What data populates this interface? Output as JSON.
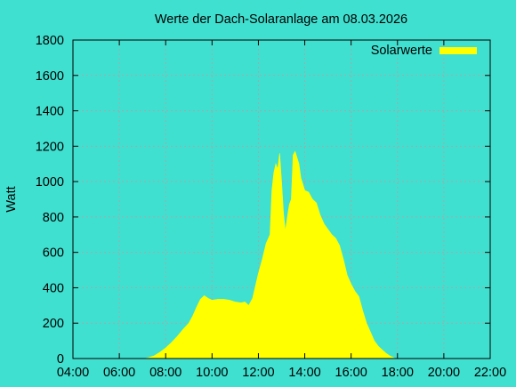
{
  "chart_data": {
    "type": "area",
    "title": "Werte der Dach-Solaranlage am 08.03.2026",
    "xlabel": "",
    "ylabel": "Watt",
    "xlim": [
      "04:00",
      "22:00"
    ],
    "ylim": [
      0,
      1800
    ],
    "xticks": [
      "04:00",
      "06:00",
      "08:00",
      "10:00",
      "12:00",
      "14:00",
      "16:00",
      "18:00",
      "20:00",
      "22:00"
    ],
    "yticks": [
      "0",
      "200",
      "400",
      "600",
      "800",
      "1000",
      "1200",
      "1400",
      "1600",
      "1800"
    ],
    "grid": true,
    "legend_position": "top-right",
    "colors": {
      "background": "#40e0d0",
      "series": "#ffff00",
      "grid": "#a8a8a8",
      "axis": "#000000"
    },
    "series": [
      {
        "name": "Solarwerte",
        "color": "#ffff00",
        "points": [
          [
            "07:05",
            0
          ],
          [
            "07:15",
            5
          ],
          [
            "07:30",
            15
          ],
          [
            "07:45",
            35
          ],
          [
            "08:00",
            60
          ],
          [
            "08:15",
            90
          ],
          [
            "08:30",
            125
          ],
          [
            "08:45",
            165
          ],
          [
            "09:00",
            200
          ],
          [
            "09:10",
            240
          ],
          [
            "09:20",
            290
          ],
          [
            "09:30",
            335
          ],
          [
            "09:40",
            355
          ],
          [
            "09:50",
            340
          ],
          [
            "10:00",
            330
          ],
          [
            "10:15",
            335
          ],
          [
            "10:30",
            335
          ],
          [
            "10:45",
            330
          ],
          [
            "11:00",
            320
          ],
          [
            "11:15",
            315
          ],
          [
            "11:25",
            320
          ],
          [
            "11:35",
            300
          ],
          [
            "11:45",
            340
          ],
          [
            "12:00",
            480
          ],
          [
            "12:10",
            560
          ],
          [
            "12:20",
            650
          ],
          [
            "12:30",
            700
          ],
          [
            "12:35",
            950
          ],
          [
            "12:40",
            1050
          ],
          [
            "12:45",
            1100
          ],
          [
            "12:50",
            1070
          ],
          [
            "12:55",
            1160
          ],
          [
            "13:00",
            1000
          ],
          [
            "13:05",
            820
          ],
          [
            "13:10",
            720
          ],
          [
            "13:15",
            800
          ],
          [
            "13:20",
            870
          ],
          [
            "13:25",
            900
          ],
          [
            "13:30",
            1150
          ],
          [
            "13:35",
            1170
          ],
          [
            "13:45",
            1100
          ],
          [
            "13:50",
            1020
          ],
          [
            "14:00",
            950
          ],
          [
            "14:10",
            940
          ],
          [
            "14:20",
            900
          ],
          [
            "14:30",
            880
          ],
          [
            "14:40",
            810
          ],
          [
            "14:50",
            760
          ],
          [
            "15:00",
            730
          ],
          [
            "15:10",
            700
          ],
          [
            "15:20",
            680
          ],
          [
            "15:30",
            640
          ],
          [
            "15:40",
            560
          ],
          [
            "15:50",
            470
          ],
          [
            "16:00",
            420
          ],
          [
            "16:10",
            380
          ],
          [
            "16:20",
            350
          ],
          [
            "16:30",
            270
          ],
          [
            "16:40",
            200
          ],
          [
            "16:50",
            150
          ],
          [
            "17:00",
            100
          ],
          [
            "17:10",
            70
          ],
          [
            "17:20",
            50
          ],
          [
            "17:30",
            30
          ],
          [
            "17:40",
            15
          ],
          [
            "17:50",
            5
          ],
          [
            "17:55",
            0
          ]
        ]
      }
    ]
  }
}
